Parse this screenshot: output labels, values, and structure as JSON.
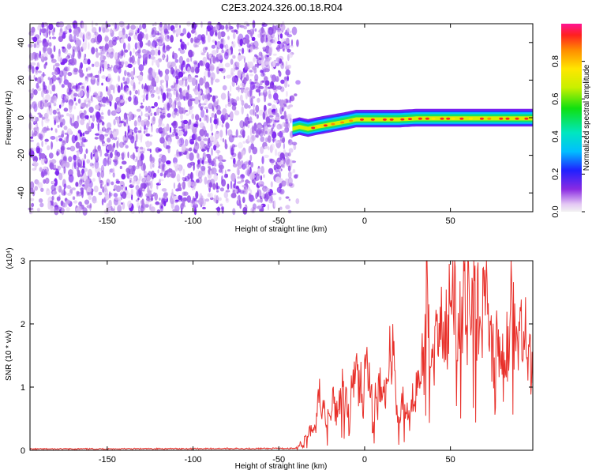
{
  "title": "C2E3.2024.326.00.18.R04",
  "chart_data": [
    {
      "type": "heatmap",
      "xlabel": "Height of straight line (km)",
      "ylabel": "Frequency (Hz)",
      "xlim": [
        -195,
        98
      ],
      "ylim": [
        -50,
        50
      ],
      "x_ticks": [
        -150,
        -100,
        -50,
        0,
        50
      ],
      "y_ticks": [
        -40,
        -20,
        0,
        20,
        40
      ],
      "colorbar": {
        "label": "Normalized spectral amplitude",
        "range": [
          0,
          1
        ],
        "ticks": [
          "0.0",
          "0.2",
          "0.4",
          "0.6",
          "0.8"
        ],
        "colormap": "rainbow"
      },
      "signal_trace": {
        "x": [
          -42,
          -38,
          -33,
          -28,
          -22,
          -16,
          -10,
          -5,
          0,
          10,
          20,
          30,
          40,
          50,
          60,
          70,
          80,
          90,
          98
        ],
        "y": [
          -6,
          -5,
          -6,
          -5,
          -4,
          -3,
          -2,
          -1,
          -1,
          -1,
          -1,
          -0.5,
          -0.5,
          -0.5,
          -0.5,
          -0.5,
          -0.5,
          -0.5,
          -0.5
        ]
      },
      "noise_region_x": [
        -195,
        -42
      ]
    },
    {
      "type": "line",
      "xlabel": "Height of straight line (km)",
      "ylabel": "SNR (10 * v/v)",
      "y_multiplier": "(x10⁴)",
      "xlim": [
        -195,
        98
      ],
      "ylim": [
        0,
        3
      ],
      "x_ticks": [
        -150,
        -100,
        -50,
        0,
        50
      ],
      "y_ticks": [
        0,
        1,
        2,
        3
      ],
      "series": [
        {
          "color": "#e8302a",
          "x": [
            -195,
            -40,
            -30,
            -25,
            -20,
            -15,
            -10,
            -5,
            0,
            5,
            10,
            15,
            20,
            25,
            30,
            35,
            40,
            45,
            50,
            55,
            60,
            65,
            70,
            75,
            80,
            85,
            90,
            95,
            98
          ],
          "y": [
            0.01,
            0.02,
            0.4,
            0.9,
            0.6,
            1.1,
            0.7,
            1.4,
            1.3,
            1.0,
            0.8,
            1.7,
            0.8,
            0.6,
            0.9,
            2.4,
            2.0,
            1.9,
            2.6,
            2.2,
            2.9,
            2.1,
            2.5,
            1.8,
            1.4,
            2.4,
            2.0,
            1.6,
            1.9
          ]
        }
      ]
    }
  ]
}
